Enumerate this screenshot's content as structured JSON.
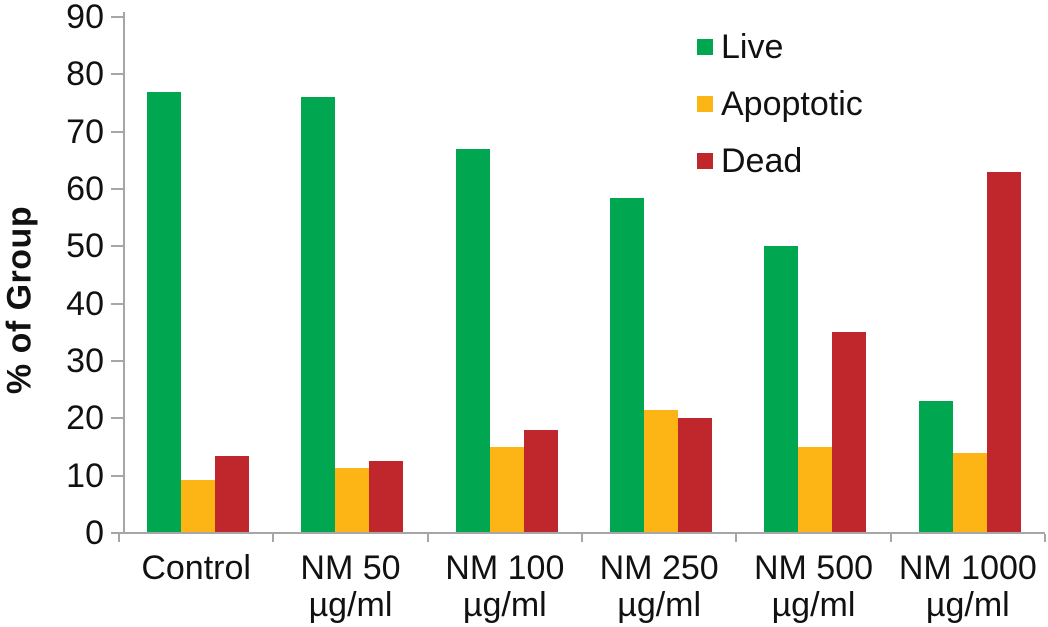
{
  "chart_data": {
    "type": "bar",
    "title": "",
    "ylabel": "% of Group",
    "xlabel": "",
    "ylim": [
      0,
      90
    ],
    "ytick_step": 10,
    "grid": false,
    "legend_position": "top-right-inside",
    "categories": [
      "Control",
      "NM 50 µg/ml",
      "NM 100 µg/ml",
      "NM 250 µg/ml",
      "NM 500 µg/ml",
      "NM 1000 µg/ml"
    ],
    "category_display_lines": [
      [
        "Control"
      ],
      [
        "NM 50",
        "µg/ml"
      ],
      [
        "NM 100",
        "µg/ml"
      ],
      [
        "NM 250",
        "µg/ml"
      ],
      [
        "NM 500",
        "µg/ml"
      ],
      [
        "NM 1000",
        "µg/ml"
      ]
    ],
    "series": [
      {
        "name": "Live",
        "color": "#00A650",
        "values": [
          77,
          76,
          67,
          58.5,
          50,
          23
        ]
      },
      {
        "name": "Apoptotic",
        "color": "#FDB515",
        "values": [
          9.3,
          11.3,
          15,
          21.5,
          15,
          14
        ]
      },
      {
        "name": "Dead",
        "color": "#C0272C",
        "values": [
          13.5,
          12.5,
          18,
          20,
          35,
          63
        ]
      }
    ],
    "colors": {
      "axis": "#A6A6A6",
      "text": "#111111"
    }
  }
}
